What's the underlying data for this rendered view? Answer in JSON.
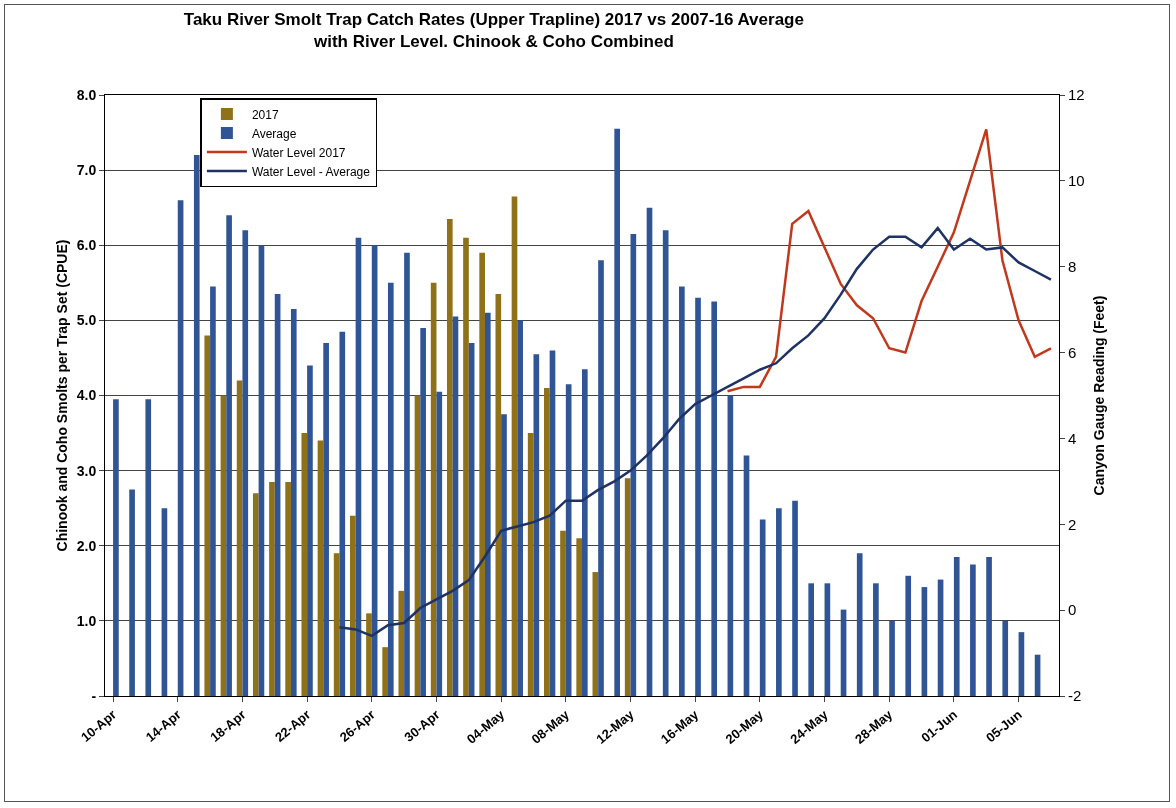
{
  "chart_data": {
    "type": "bar",
    "title": "Taku River Smolt Trap Catch Rates (Upper Trapline) 2017 vs 2007-16 Average\nwith River Level. Chinook & Coho Combined",
    "ylabel": "Chinook and Coho Smolts per Trap Set (CPUE)",
    "y2label": "Canyon Gauge Reading (Feet)",
    "categories": [
      "10-Apr",
      null,
      null,
      null,
      "14-Apr",
      null,
      null,
      null,
      "18-Apr",
      null,
      null,
      null,
      "22-Apr",
      null,
      null,
      null,
      "26-Apr",
      null,
      null,
      null,
      "30-Apr",
      null,
      null,
      null,
      "04-May",
      null,
      null,
      null,
      "08-May",
      null,
      null,
      null,
      "12-May",
      null,
      null,
      null,
      "16-May",
      null,
      null,
      null,
      "20-May",
      null,
      null,
      null,
      "24-May",
      null,
      null,
      null,
      "28-May",
      null,
      null,
      null,
      "01-Jun",
      null,
      null,
      null,
      "05-Jun",
      null,
      null
    ],
    "series": [
      {
        "name": "2017",
        "color": "#8f7119",
        "values": [
          null,
          null,
          null,
          null,
          null,
          null,
          4.8,
          4.0,
          4.2,
          2.7,
          2.85,
          2.85,
          3.5,
          3.4,
          1.9,
          2.4,
          1.1,
          0.65,
          1.4,
          4.0,
          5.5,
          6.35,
          6.1,
          5.9,
          5.35,
          6.65,
          3.5,
          4.1,
          2.2,
          2.1,
          1.65,
          null,
          2.9,
          null,
          null,
          null,
          null,
          null,
          null,
          null,
          null,
          null,
          null,
          null,
          null,
          null,
          null,
          null,
          null,
          null,
          null,
          null,
          null,
          null,
          null,
          null,
          null,
          null,
          null
        ]
      },
      {
        "name": "Average",
        "color": "#2f5597",
        "values": [
          3.95,
          2.75,
          3.95,
          2.5,
          6.6,
          7.2,
          5.45,
          6.4,
          6.2,
          6.0,
          5.35,
          5.15,
          4.4,
          4.7,
          4.85,
          6.1,
          6.0,
          5.5,
          5.9,
          4.9,
          4.05,
          5.05,
          4.7,
          5.1,
          3.75,
          5.0,
          4.55,
          4.6,
          4.15,
          4.35,
          5.8,
          7.55,
          6.15,
          6.5,
          6.2,
          5.45,
          5.3,
          5.25,
          4.0,
          3.2,
          2.35,
          2.5,
          2.6,
          1.5,
          1.5,
          1.15,
          1.9,
          1.5,
          1.0,
          1.6,
          1.45,
          1.55,
          1.85,
          1.75,
          1.85,
          1.0,
          0.85,
          0.55,
          null
        ]
      },
      {
        "name": "Water Level 2017",
        "type": "line",
        "axis": "y2",
        "color": "#c0391b",
        "values": [
          null,
          null,
          null,
          null,
          null,
          null,
          null,
          null,
          null,
          null,
          null,
          null,
          null,
          null,
          null,
          null,
          null,
          null,
          null,
          null,
          null,
          null,
          null,
          null,
          null,
          null,
          null,
          null,
          null,
          null,
          null,
          null,
          null,
          null,
          null,
          null,
          null,
          null,
          5.1,
          5.2,
          5.2,
          5.9,
          9.0,
          9.3,
          8.45,
          7.6,
          7.1,
          6.8,
          6.1,
          6.0,
          7.2,
          8.0,
          8.8,
          10.0,
          11.2,
          8.15,
          6.75,
          5.9,
          6.1
        ]
      },
      {
        "name": "Water Level - Average",
        "type": "line",
        "axis": "y2",
        "color": "#1f3264",
        "values": [
          null,
          null,
          null,
          null,
          null,
          null,
          null,
          null,
          null,
          null,
          null,
          null,
          null,
          null,
          -0.4,
          -0.45,
          -0.6,
          -0.35,
          -0.3,
          0.05,
          0.25,
          0.45,
          0.7,
          1.25,
          1.85,
          1.95,
          2.05,
          2.2,
          2.55,
          2.55,
          2.8,
          3.0,
          3.25,
          3.6,
          4.0,
          4.45,
          4.8,
          5.0,
          5.2,
          5.4,
          5.6,
          5.75,
          6.1,
          6.4,
          6.8,
          7.35,
          7.95,
          8.4,
          8.7,
          8.7,
          8.45,
          8.9,
          8.4,
          8.65,
          8.4,
          8.45,
          8.1,
          7.9,
          7.7
        ]
      }
    ],
    "ylim": [
      0,
      8
    ],
    "yticks": [
      {
        "value": 0,
        "label": "-"
      },
      {
        "value": 1,
        "label": "1.0"
      },
      {
        "value": 2,
        "label": "2.0"
      },
      {
        "value": 3,
        "label": "3.0"
      },
      {
        "value": 4,
        "label": "4.0"
      },
      {
        "value": 5,
        "label": "5.0"
      },
      {
        "value": 6,
        "label": "6.0"
      },
      {
        "value": 7,
        "label": "7.0"
      },
      {
        "value": 8,
        "label": "8.0"
      }
    ],
    "y2lim": [
      -2,
      12
    ],
    "y2ticks": [
      -2,
      0,
      2,
      4,
      6,
      8,
      10,
      12
    ],
    "grid": "y",
    "legend": "top left",
    "marker": "none",
    "line_style": "solid"
  }
}
